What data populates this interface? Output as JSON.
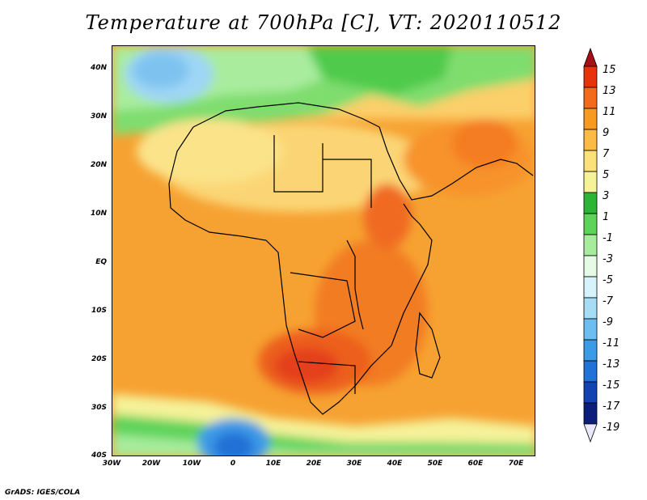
{
  "title": "Temperature at 700hPa [C], VT: 2020110512",
  "credit": "GrADS: IGES/COLA",
  "map": {
    "region": "Africa",
    "variable": "Temperature at 700hPa",
    "units": "C",
    "valid_time": "2020110512",
    "lat_labels": [
      "40N",
      "30N",
      "20N",
      "10N",
      "EQ",
      "10S",
      "20S",
      "30S",
      "40S"
    ],
    "lon_labels": [
      "30W",
      "20W",
      "10W",
      "0",
      "10E",
      "20E",
      "30E",
      "40E",
      "50E",
      "60E",
      "70E"
    ]
  },
  "colorbar": {
    "labels": [
      "15",
      "13",
      "11",
      "9",
      "7",
      "5",
      "3",
      "1",
      "-1",
      "-3",
      "-5",
      "-7",
      "-9",
      "-11",
      "-13",
      "-15",
      "-17",
      "-19"
    ],
    "colors": [
      "#a50f15",
      "#e8320c",
      "#f36b1a",
      "#f79a22",
      "#fbbb44",
      "#fbe07c",
      "#f5f29a",
      "#2db335",
      "#5ed35a",
      "#a6ec9c",
      "#e6fbe6",
      "#d6f2fa",
      "#a7dcf5",
      "#6ebdf0",
      "#3d9ae6",
      "#2171d6",
      "#1243b0",
      "#0b1f7a",
      "#e9e9fb"
    ]
  }
}
